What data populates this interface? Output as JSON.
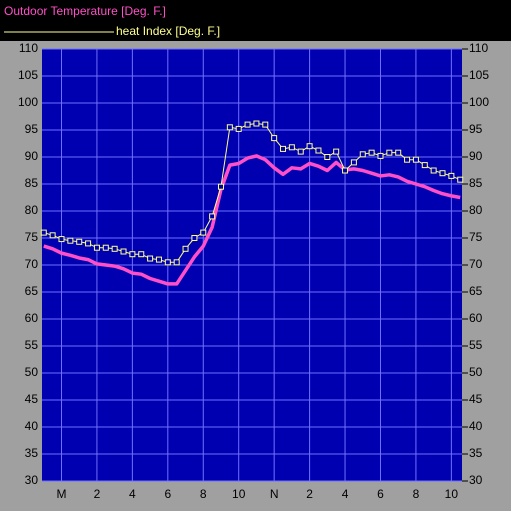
{
  "chart_data": {
    "type": "line",
    "x": [
      -1,
      -0.5,
      0,
      0.5,
      1,
      1.5,
      2,
      2.5,
      3,
      3.5,
      4,
      4.5,
      5,
      5.5,
      6,
      6.5,
      7,
      7.5,
      8,
      8.5,
      9,
      9.5,
      10,
      10.5,
      11,
      11.5,
      12,
      12.5,
      13,
      13.5,
      14,
      14.5,
      15,
      15.5,
      16,
      16.5,
      17,
      17.5,
      18,
      18.5,
      19,
      19.5,
      20,
      20.5,
      21,
      21.5,
      22,
      22.5
    ],
    "series": [
      {
        "name": "Outdoor Temperature [Deg. F.]",
        "color": "#ff50c8",
        "markers": false,
        "values": [
          73.5,
          73,
          72.2,
          71.8,
          71.3,
          71,
          70.2,
          70,
          69.8,
          69.3,
          68.5,
          68.3,
          67.5,
          67,
          66.5,
          66.5,
          69,
          71.5,
          73.5,
          77,
          84,
          88.5,
          88.8,
          89.8,
          90.2,
          89.5,
          88,
          86.8,
          88,
          87.8,
          88.8,
          88.3,
          87.5,
          89,
          87.6,
          87.8,
          87.5,
          87,
          86.5,
          86.7,
          86.3,
          85.5,
          85,
          84.5,
          83.8,
          83.2,
          82.8,
          82.5
        ]
      },
      {
        "name": "heat Index [Deg. F.]",
        "color": "#ffff90",
        "markers": true,
        "values": [
          76,
          75.5,
          74.8,
          74.5,
          74.3,
          74,
          73.2,
          73.2,
          73,
          72.5,
          72,
          72,
          71.2,
          71,
          70.5,
          70.5,
          73,
          75,
          76,
          79,
          84.5,
          95.5,
          95.2,
          96,
          96.2,
          96,
          93.5,
          91.5,
          91.8,
          91,
          92,
          91.2,
          90,
          91,
          87.5,
          89,
          90.5,
          90.8,
          90.2,
          90.8,
          90.8,
          89.5,
          89.5,
          88.5,
          87.5,
          87,
          86.5,
          85.8
        ]
      }
    ],
    "xlim": [
      -1.1,
      22.6
    ],
    "xticks": [
      {
        "value": 0,
        "label": "M"
      },
      2,
      4,
      6,
      8,
      10,
      {
        "value": 12,
        "label": "N"
      },
      {
        "value": 14,
        "label": "2"
      },
      {
        "value": 16,
        "label": "4"
      },
      {
        "value": 18,
        "label": "6"
      },
      {
        "value": 20,
        "label": "8"
      },
      {
        "value": 22,
        "label": "10"
      }
    ],
    "ylim": [
      30,
      110
    ],
    "yticks": [
      30,
      35,
      40,
      45,
      50,
      55,
      60,
      65,
      70,
      75,
      80,
      85,
      90,
      95,
      100,
      105,
      110
    ],
    "grid": true
  }
}
